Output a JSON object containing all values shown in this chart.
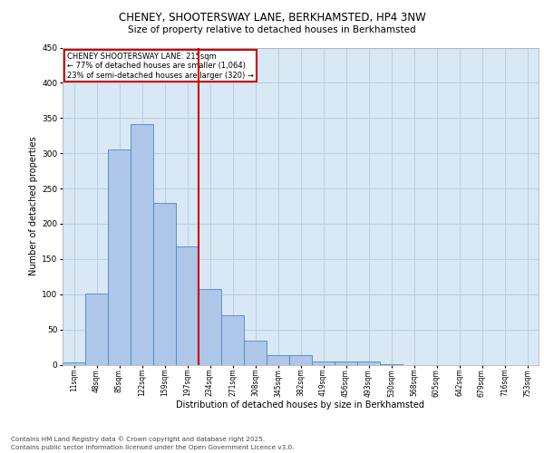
{
  "title_line1": "CHENEY, SHOOTERSWAY LANE, BERKHAMSTED, HP4 3NW",
  "title_line2": "Size of property relative to detached houses in Berkhamsted",
  "xlabel": "Distribution of detached houses by size in Berkhamsted",
  "ylabel": "Number of detached properties",
  "categories": [
    "11sqm",
    "48sqm",
    "85sqm",
    "122sqm",
    "159sqm",
    "197sqm",
    "234sqm",
    "271sqm",
    "308sqm",
    "345sqm",
    "382sqm",
    "419sqm",
    "456sqm",
    "493sqm",
    "530sqm",
    "568sqm",
    "605sqm",
    "642sqm",
    "679sqm",
    "716sqm",
    "753sqm"
  ],
  "bar_values": [
    3,
    101,
    305,
    341,
    230,
    168,
    107,
    70,
    34,
    14,
    14,
    5,
    4,
    5,
    1,
    0,
    0,
    0,
    0,
    0,
    0
  ],
  "bar_color": "#aec6e8",
  "bar_edge_color": "#4a86c8",
  "grid_color": "#b8cfe8",
  "background_color": "#d8e8f4",
  "vline_color": "#cc0000",
  "annotation_title": "CHENEY SHOOTERSWAY LANE: 215sqm",
  "annotation_line2": "← 77% of detached houses are smaller (1,064)",
  "annotation_line3": "23% of semi-detached houses are larger (320) →",
  "annotation_box_color": "#cc0000",
  "footer_line1": "Contains HM Land Registry data © Crown copyright and database right 2025.",
  "footer_line2": "Contains public sector information licensed under the Open Government Licence v3.0.",
  "ylim": [
    0,
    450
  ],
  "yticks": [
    0,
    50,
    100,
    150,
    200,
    250,
    300,
    350,
    400,
    450
  ]
}
